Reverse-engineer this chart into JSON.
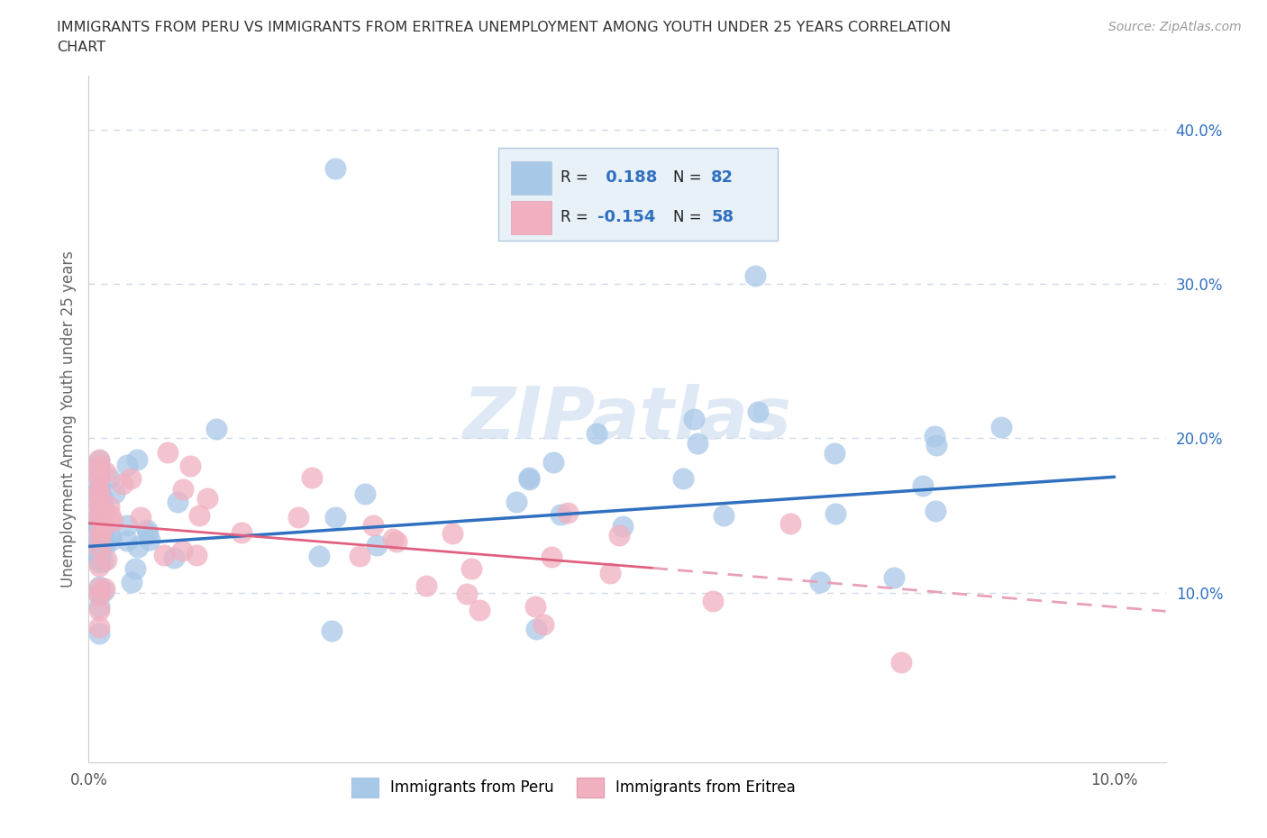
{
  "title_line1": "IMMIGRANTS FROM PERU VS IMMIGRANTS FROM ERITREA UNEMPLOYMENT AMONG YOUTH UNDER 25 YEARS CORRELATION",
  "title_line2": "CHART",
  "source_text": "Source: ZipAtlas.com",
  "ylabel": "Unemployment Among Youth under 25 years",
  "xlim": [
    0.0,
    0.105
  ],
  "ylim": [
    -0.01,
    0.435
  ],
  "peru_color": "#a8c8e8",
  "eritrea_color": "#f0b0c0",
  "peru_R": 0.188,
  "peru_N": 82,
  "eritrea_R": -0.154,
  "eritrea_N": 58,
  "trend_peru_color": "#3070c0",
  "trend_eritrea_solid_color": "#e06080",
  "trend_eritrea_dash_color": "#e8a0b8",
  "watermark": "ZIPatlas",
  "grid_color": "#d0d8e8",
  "background_color": "#ffffff",
  "title_color": "#333333",
  "ytick_color": "#3070c0",
  "xtick_color": "#555555",
  "legend_box_color": "#e8f0f8",
  "legend_border_color": "#b0c8e0"
}
